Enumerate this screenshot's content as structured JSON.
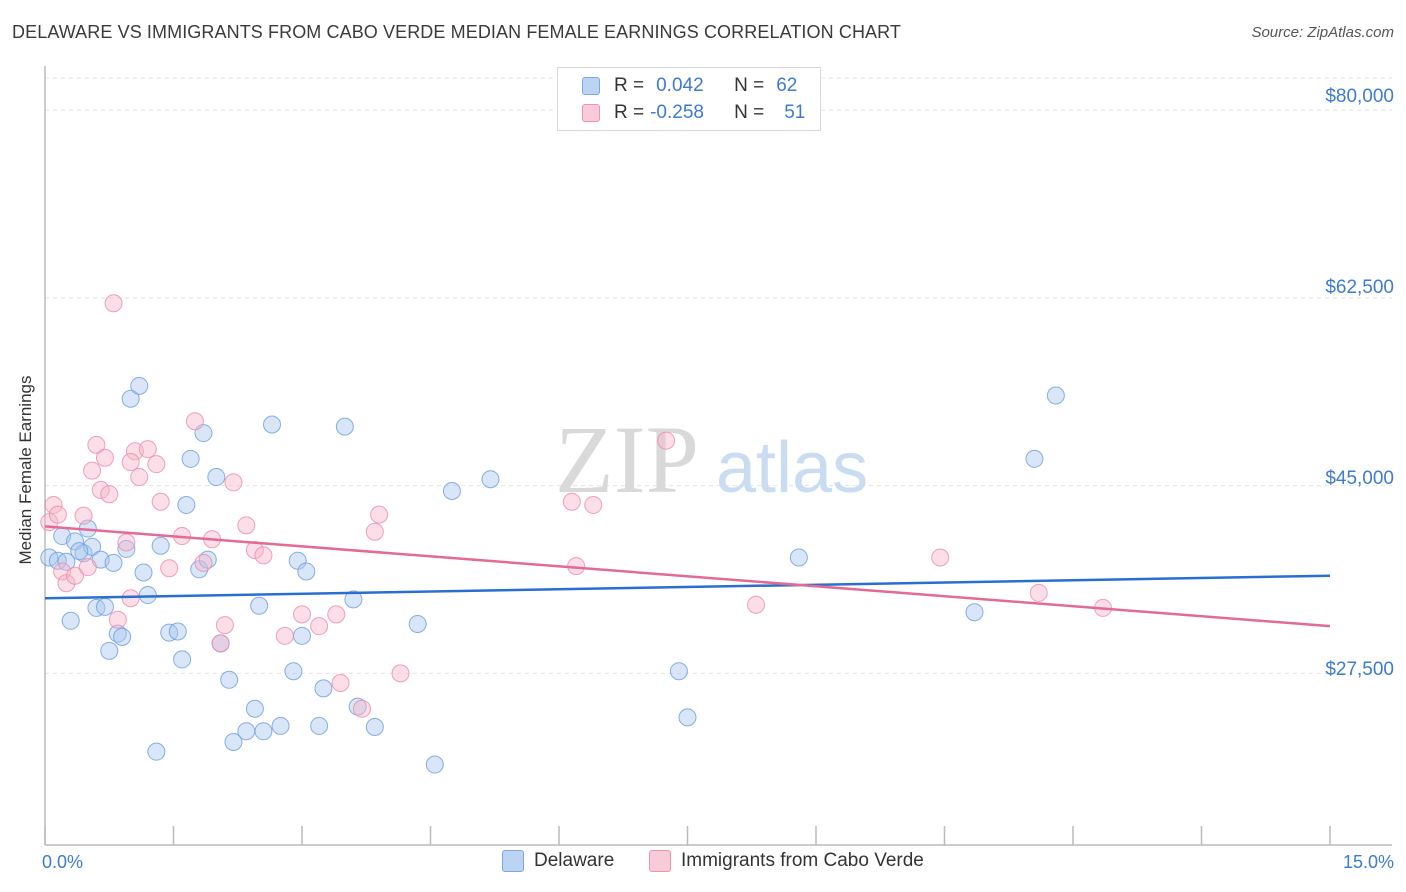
{
  "title": "DELAWARE VS IMMIGRANTS FROM CABO VERDE MEDIAN FEMALE EARNINGS CORRELATION CHART",
  "source": "Source: ZipAtlas.com",
  "watermark": {
    "part1": "ZIP",
    "part2": "atlas"
  },
  "legend_top": {
    "rows": [
      {
        "r_label": "R =",
        "r_value": "0.042",
        "n_label": "N =",
        "n_value": "62",
        "color": "#a9c8f0"
      },
      {
        "r_label": "R =",
        "r_value": "-0.258",
        "n_label": "N =",
        "n_value": "51",
        "color": "#f6b6ca"
      }
    ]
  },
  "chart_data": {
    "type": "scatter",
    "title": "DELAWARE VS IMMIGRANTS FROM CABO VERDE MEDIAN FEMALE EARNINGS CORRELATION CHART",
    "xlabel": "",
    "ylabel": "Median Female Earnings",
    "xlim": [
      0,
      15
    ],
    "ylim": [
      11500,
      83000
    ],
    "x_tick_labels": [
      "0.0%",
      "15.0%"
    ],
    "y_ticks": [
      27500,
      45000,
      62500,
      80000
    ],
    "y_tick_labels": [
      "$27,500",
      "$45,000",
      "$62,500",
      "$80,000"
    ],
    "grid": true,
    "legend": "bottom-center",
    "series": [
      {
        "name": "Delaware",
        "color": "#6a9be0",
        "fill": "#a9c8f0",
        "trend": {
          "x": [
            0,
            15
          ],
          "y": [
            34500,
            36600
          ]
        },
        "points": [
          [
            0.05,
            38300
          ],
          [
            0.15,
            38000
          ],
          [
            0.2,
            40300
          ],
          [
            0.3,
            32400
          ],
          [
            0.35,
            39800
          ],
          [
            0.45,
            38700
          ],
          [
            0.5,
            41000
          ],
          [
            0.55,
            39300
          ],
          [
            0.6,
            33600
          ],
          [
            0.65,
            38100
          ],
          [
            0.7,
            33700
          ],
          [
            0.75,
            29600
          ],
          [
            0.85,
            31200
          ],
          [
            0.9,
            30900
          ],
          [
            0.95,
            39100
          ],
          [
            1.0,
            53100
          ],
          [
            1.1,
            54300
          ],
          [
            1.15,
            36900
          ],
          [
            1.2,
            34800
          ],
          [
            1.3,
            20200
          ],
          [
            1.35,
            39400
          ],
          [
            1.45,
            31300
          ],
          [
            1.55,
            31400
          ],
          [
            1.6,
            28800
          ],
          [
            1.65,
            43200
          ],
          [
            1.7,
            47500
          ],
          [
            1.8,
            37200
          ],
          [
            1.85,
            49900
          ],
          [
            1.9,
            38100
          ],
          [
            2.0,
            45800
          ],
          [
            2.05,
            30300
          ],
          [
            2.15,
            26900
          ],
          [
            2.2,
            21100
          ],
          [
            2.35,
            22100
          ],
          [
            2.45,
            24200
          ],
          [
            2.5,
            33800
          ],
          [
            2.55,
            22100
          ],
          [
            2.65,
            50700
          ],
          [
            2.75,
            22600
          ],
          [
            2.9,
            27700
          ],
          [
            2.95,
            38000
          ],
          [
            3.0,
            31000
          ],
          [
            3.05,
            37000
          ],
          [
            3.2,
            22600
          ],
          [
            3.25,
            26100
          ],
          [
            3.5,
            50500
          ],
          [
            3.6,
            34400
          ],
          [
            3.65,
            24400
          ],
          [
            3.85,
            22500
          ],
          [
            4.35,
            32100
          ],
          [
            4.55,
            19000
          ],
          [
            4.75,
            44500
          ],
          [
            5.2,
            45600
          ],
          [
            7.4,
            27700
          ],
          [
            7.5,
            23400
          ],
          [
            8.8,
            38300
          ],
          [
            10.85,
            33200
          ],
          [
            11.55,
            47500
          ],
          [
            11.8,
            53400
          ],
          [
            0.25,
            37900
          ],
          [
            0.4,
            38900
          ],
          [
            0.8,
            37800
          ]
        ]
      },
      {
        "name": "Immigrants from Cabo Verde",
        "color": "#ee8aa8",
        "fill": "#f6b6ca",
        "trend": {
          "x": [
            0,
            15
          ],
          "y": [
            41200,
            31900
          ]
        },
        "points": [
          [
            0.05,
            41600
          ],
          [
            0.1,
            43200
          ],
          [
            0.15,
            42300
          ],
          [
            0.2,
            37000
          ],
          [
            0.25,
            35900
          ],
          [
            0.35,
            36600
          ],
          [
            0.45,
            42200
          ],
          [
            0.5,
            37400
          ],
          [
            0.55,
            46400
          ],
          [
            0.6,
            48800
          ],
          [
            0.65,
            44600
          ],
          [
            0.7,
            47600
          ],
          [
            0.75,
            44200
          ],
          [
            0.8,
            62000
          ],
          [
            0.85,
            32500
          ],
          [
            0.95,
            39700
          ],
          [
            1.0,
            34500
          ],
          [
            1.05,
            48200
          ],
          [
            1.1,
            45800
          ],
          [
            1.2,
            48400
          ],
          [
            1.3,
            47000
          ],
          [
            1.35,
            43500
          ],
          [
            1.45,
            37300
          ],
          [
            1.6,
            40300
          ],
          [
            1.75,
            51000
          ],
          [
            1.85,
            37800
          ],
          [
            1.95,
            40000
          ],
          [
            2.05,
            30300
          ],
          [
            2.1,
            32000
          ],
          [
            2.2,
            45300
          ],
          [
            2.35,
            41300
          ],
          [
            2.45,
            39000
          ],
          [
            2.55,
            38500
          ],
          [
            2.8,
            31000
          ],
          [
            3.0,
            33000
          ],
          [
            3.2,
            31900
          ],
          [
            3.4,
            33000
          ],
          [
            3.45,
            26600
          ],
          [
            3.7,
            24200
          ],
          [
            3.85,
            40700
          ],
          [
            3.9,
            42300
          ],
          [
            4.15,
            27500
          ],
          [
            6.15,
            43500
          ],
          [
            6.2,
            37500
          ],
          [
            6.4,
            43200
          ],
          [
            7.25,
            49200
          ],
          [
            8.3,
            33900
          ],
          [
            10.45,
            38300
          ],
          [
            11.6,
            35000
          ],
          [
            12.35,
            33600
          ],
          [
            1.0,
            47200
          ]
        ]
      }
    ]
  }
}
